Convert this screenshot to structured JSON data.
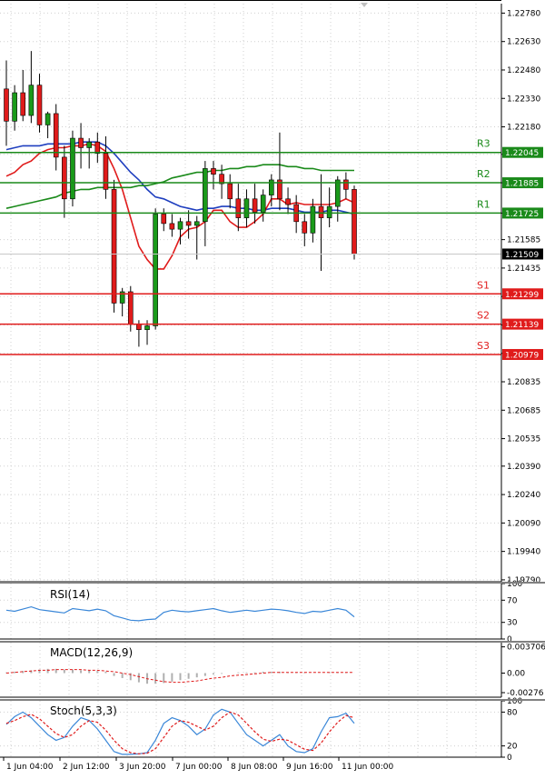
{
  "chart_data": [
    {
      "type": "candlestick",
      "panel": "price",
      "y_ticks": [
        "1.22780",
        "1.22630",
        "1.22480",
        "1.22330",
        "1.22180",
        "1.22035",
        "1.21885",
        "1.21725",
        "1.21585",
        "1.21435",
        "1.21285",
        "1.21135",
        "1.20985",
        "1.20835",
        "1.20685",
        "1.20535",
        "1.20390",
        "1.20240",
        "1.20090",
        "1.19940",
        "1.19790"
      ],
      "ylim": [
        1.1978,
        1.2283
      ],
      "x_ticks": [
        "1 Jun 04:00",
        "2 Jun 12:00",
        "3 Jun 20:00",
        "7 Jun 00:00",
        "8 Jun 08:00",
        "9 Jun 16:00",
        "11 Jun 00:00"
      ],
      "current_price": {
        "label": "1.21509",
        "value": 1.21509
      },
      "levels": [
        {
          "name": "R3",
          "label": "1.22045",
          "value": 1.22045,
          "color": "#1a8a1a"
        },
        {
          "name": "R2",
          "label": "1.21885",
          "value": 1.21885,
          "color": "#1a8a1a"
        },
        {
          "name": "R1",
          "label": "1.21725",
          "value": 1.21725,
          "color": "#1a8a1a"
        },
        {
          "name": "S1",
          "label": "1.21299",
          "value": 1.21299,
          "color": "#e01b1b"
        },
        {
          "name": "S2",
          "label": "1.21139",
          "value": 1.21139,
          "color": "#e01b1b"
        },
        {
          "name": "S3",
          "label": "1.20979",
          "value": 1.20979,
          "color": "#e01b1b"
        }
      ],
      "candles_ohlc": [
        [
          1.2238,
          1.2253,
          1.2208,
          1.2221
        ],
        [
          1.2221,
          1.224,
          1.2216,
          1.2236
        ],
        [
          1.2236,
          1.2248,
          1.2221,
          1.2224
        ],
        [
          1.2224,
          1.2258,
          1.222,
          1.224
        ],
        [
          1.224,
          1.2246,
          1.2215,
          1.2219
        ],
        [
          1.2219,
          1.2226,
          1.2212,
          1.2225
        ],
        [
          1.2225,
          1.223,
          1.2195,
          1.2202
        ],
        [
          1.2202,
          1.2208,
          1.217,
          1.218
        ],
        [
          1.218,
          1.2216,
          1.2176,
          1.2212
        ],
        [
          1.2212,
          1.222,
          1.2196,
          1.2207
        ],
        [
          1.2207,
          1.2212,
          1.2196,
          1.221
        ],
        [
          1.221,
          1.2215,
          1.2199,
          1.2204
        ],
        [
          1.2204,
          1.2213,
          1.218,
          1.2185
        ],
        [
          1.2185,
          1.219,
          1.212,
          1.2125
        ],
        [
          1.2125,
          1.2133,
          1.2118,
          1.2131
        ],
        [
          1.2131,
          1.2134,
          1.211,
          1.2114
        ],
        [
          1.2114,
          1.2116,
          1.2102,
          1.2111
        ],
        [
          1.2111,
          1.2116,
          1.2103,
          1.2113
        ],
        [
          1.2113,
          1.2175,
          1.2111,
          1.2172
        ],
        [
          1.2172,
          1.2175,
          1.2163,
          1.2167
        ],
        [
          1.2167,
          1.2172,
          1.216,
          1.2164
        ],
        [
          1.2164,
          1.217,
          1.2156,
          1.2168
        ],
        [
          1.2168,
          1.2174,
          1.2159,
          1.2166
        ],
        [
          1.2166,
          1.2171,
          1.2148,
          1.2168
        ],
        [
          1.2168,
          1.22,
          1.2155,
          1.2196
        ],
        [
          1.2196,
          1.22,
          1.2185,
          1.2193
        ],
        [
          1.2193,
          1.2198,
          1.218,
          1.2188
        ],
        [
          1.2188,
          1.2193,
          1.2175,
          1.218
        ],
        [
          1.218,
          1.2188,
          1.2163,
          1.217
        ],
        [
          1.217,
          1.2185,
          1.2165,
          1.218
        ],
        [
          1.218,
          1.2188,
          1.2167,
          1.2173
        ],
        [
          1.2173,
          1.2185,
          1.2168,
          1.2182
        ],
        [
          1.2182,
          1.2193,
          1.2176,
          1.219
        ],
        [
          1.219,
          1.2215,
          1.2174,
          1.218
        ],
        [
          1.218,
          1.2186,
          1.2172,
          1.2177
        ],
        [
          1.2177,
          1.2182,
          1.2162,
          1.2168
        ],
        [
          1.2168,
          1.2172,
          1.2155,
          1.2162
        ],
        [
          1.2162,
          1.218,
          1.2157,
          1.2176
        ],
        [
          1.2176,
          1.2193,
          1.2142,
          1.217
        ],
        [
          1.217,
          1.2186,
          1.2165,
          1.2176
        ],
        [
          1.2176,
          1.2192,
          1.2168,
          1.219
        ],
        [
          1.219,
          1.2194,
          1.218,
          1.2185
        ],
        [
          1.2185,
          1.2187,
          1.2148,
          1.2151
        ]
      ],
      "series": [
        {
          "name": "",
          "color": "#1f3fbf",
          "values": [
            1.2206,
            1.2207,
            1.2208,
            1.2208,
            1.2208,
            1.2209,
            1.2209,
            1.2209,
            1.2209,
            1.221,
            1.221,
            1.221,
            1.2208,
            1.2204,
            1.2199,
            1.2194,
            1.219,
            1.2185,
            1.2181,
            1.218,
            1.2178,
            1.2176,
            1.2175,
            1.2174,
            1.2175,
            1.2175,
            1.2176,
            1.2176,
            1.2175,
            1.2175,
            1.2174,
            1.2174,
            1.2175,
            1.2175,
            1.2175,
            1.2174,
            1.2173,
            1.2173,
            1.2173,
            1.2174,
            1.2174,
            1.2173,
            1.2172
          ]
        },
        {
          "name": "",
          "color": "#e01b1b",
          "values": [
            1.2192,
            1.2194,
            1.2198,
            1.22,
            1.2204,
            1.2206,
            1.2207,
            1.2207,
            1.2208,
            1.2208,
            1.2209,
            1.2208,
            1.2205,
            1.2196,
            1.2185,
            1.217,
            1.2155,
            1.2148,
            1.2143,
            1.2143,
            1.215,
            1.216,
            1.2164,
            1.2165,
            1.2168,
            1.2174,
            1.2174,
            1.2168,
            1.2165,
            1.2165,
            1.2168,
            1.2172,
            1.218,
            1.218,
            1.2177,
            1.2178,
            1.2177,
            1.2177,
            1.2177,
            1.2177,
            1.2178,
            1.218,
            1.2178
          ]
        },
        {
          "name": "",
          "color": "#1a8a1a",
          "values": [
            1.2175,
            1.2176,
            1.2177,
            1.2178,
            1.2179,
            1.218,
            1.2181,
            1.2183,
            1.2184,
            1.2185,
            1.2185,
            1.2186,
            1.2186,
            1.2186,
            1.2186,
            1.2186,
            1.2187,
            1.2187,
            1.2188,
            1.2189,
            1.2191,
            1.2192,
            1.2193,
            1.2194,
            1.2194,
            1.2195,
            1.2195,
            1.2196,
            1.2196,
            1.2197,
            1.2197,
            1.2198,
            1.2198,
            1.2198,
            1.2197,
            1.2197,
            1.2196,
            1.2196,
            1.2195,
            1.2195,
            1.2195,
            1.2195,
            1.2195
          ]
        }
      ]
    },
    {
      "type": "line",
      "panel": "rsi",
      "title": "RSI(14)",
      "y_ticks": [
        "100",
        "70",
        "30",
        "0"
      ],
      "ylim": [
        0,
        100
      ],
      "series": [
        {
          "name": "",
          "color": "#3a87d8",
          "values": [
            52,
            50,
            54,
            58,
            53,
            51,
            49,
            47,
            55,
            53,
            51,
            54,
            51,
            42,
            38,
            34,
            33,
            35,
            36,
            48,
            52,
            50,
            49,
            51,
            53,
            55,
            51,
            48,
            50,
            52,
            50,
            52,
            54,
            53,
            51,
            48,
            46,
            50,
            49,
            52,
            55,
            52,
            40
          ]
        }
      ]
    },
    {
      "type": "bar",
      "panel": "macd",
      "title": "MACD(12,26,9)",
      "y_ticks": [
        "0.003706",
        "0.00",
        "-0.00276"
      ],
      "ylim": [
        -0.0034,
        0.0043
      ],
      "histogram": [
        0.0001,
        0.0002,
        0.0003,
        0.0004,
        0.0005,
        0.0006,
        0.0006,
        0.0005,
        0.0005,
        0.0004,
        0.0004,
        0.0003,
        0.0002,
        -0.0004,
        -0.0007,
        -0.001,
        -0.0013,
        -0.0015,
        -0.0015,
        -0.0014,
        -0.0012,
        -0.001,
        -0.0008,
        -0.0006,
        -0.0004,
        -0.0002,
        -0.0001,
        0.0,
        0.0001,
        0.0001,
        0.0001,
        0.0002,
        0.0002,
        0.0002,
        0.0001,
        0.0001,
        0.0001,
        0.0,
        0.0,
        0.0001,
        0.0001,
        0.0001,
        0.0
      ],
      "signal": [
        0.0,
        0.0001,
        0.0002,
        0.0003,
        0.0004,
        0.0004,
        0.0005,
        0.0005,
        0.0005,
        0.0005,
        0.0004,
        0.0004,
        0.0003,
        0.0002,
        0.0,
        -0.0002,
        -0.0005,
        -0.0008,
        -0.001,
        -0.0012,
        -0.0013,
        -0.0013,
        -0.0012,
        -0.0011,
        -0.0009,
        -0.0007,
        -0.0006,
        -0.0004,
        -0.0003,
        -0.0002,
        -0.0001,
        0.0,
        0.0001,
        0.0001,
        0.0001,
        0.0001,
        0.0001,
        0.0001,
        0.0001,
        0.0001,
        0.0001,
        0.0001,
        0.0001
      ],
      "signal_color": "#e01b1b",
      "histogram_color": "#b0b0b0"
    },
    {
      "type": "line",
      "panel": "stoch",
      "title": "Stoch(5,3,3)",
      "y_ticks": [
        "100",
        "80",
        "20",
        "0"
      ],
      "ylim": [
        0,
        100
      ],
      "series": [
        {
          "name": "",
          "color": "#3a87d8",
          "values": [
            58,
            72,
            80,
            70,
            55,
            40,
            30,
            35,
            55,
            70,
            65,
            50,
            30,
            10,
            5,
            5,
            6,
            8,
            30,
            60,
            70,
            65,
            55,
            40,
            50,
            75,
            85,
            80,
            60,
            40,
            30,
            20,
            30,
            40,
            20,
            10,
            8,
            15,
            45,
            70,
            72,
            78,
            60
          ]
        },
        {
          "name": "",
          "color": "#e01b1b",
          "values": [
            60,
            65,
            72,
            76,
            68,
            55,
            42,
            35,
            40,
            55,
            65,
            62,
            48,
            30,
            15,
            8,
            6,
            7,
            15,
            35,
            55,
            65,
            62,
            55,
            48,
            55,
            70,
            80,
            75,
            60,
            45,
            32,
            28,
            32,
            30,
            22,
            14,
            12,
            25,
            45,
            62,
            74,
            70
          ]
        }
      ]
    }
  ]
}
